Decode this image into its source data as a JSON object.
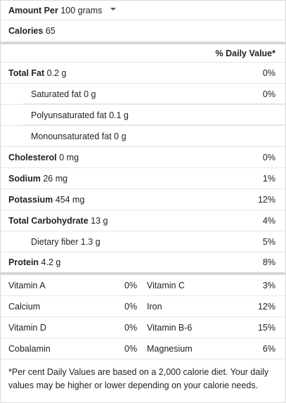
{
  "serving": {
    "label": "Amount Per",
    "value": "100 grams"
  },
  "calories": {
    "label": "Calories",
    "value": "65"
  },
  "dv_header": "% Daily Value*",
  "nutrients": [
    {
      "name": "Total Fat",
      "amount": "0.2 g",
      "dv": "0%"
    },
    {
      "name": "Saturated fat",
      "amount": "0 g",
      "dv": "0%"
    },
    {
      "name": "Polyunsaturated fat",
      "amount": "0.1 g",
      "dv": ""
    },
    {
      "name": "Monounsaturated fat",
      "amount": "0 g",
      "dv": ""
    },
    {
      "name": "Cholesterol",
      "amount": "0 mg",
      "dv": "0%"
    },
    {
      "name": "Sodium",
      "amount": "26 mg",
      "dv": "1%"
    },
    {
      "name": "Potassium",
      "amount": "454 mg",
      "dv": "12%"
    },
    {
      "name": "Total Carbohydrate",
      "amount": "13 g",
      "dv": "4%"
    },
    {
      "name": "Dietary fiber",
      "amount": "1.3 g",
      "dv": "5%"
    },
    {
      "name": "Protein",
      "amount": "4.2 g",
      "dv": "8%"
    }
  ],
  "vitamins": [
    {
      "left_name": "Vitamin A",
      "left_dv": "0%",
      "right_name": "Vitamin C",
      "right_dv": "3%"
    },
    {
      "left_name": "Calcium",
      "left_dv": "0%",
      "right_name": "Iron",
      "right_dv": "12%"
    },
    {
      "left_name": "Vitamin D",
      "left_dv": "0%",
      "right_name": "Vitamin B-6",
      "right_dv": "15%"
    },
    {
      "left_name": "Cobalamin",
      "left_dv": "0%",
      "right_name": "Magnesium",
      "right_dv": "6%"
    }
  ],
  "footnote": "*Per cent Daily Values are based on a 2,000 calorie diet. Your daily values may be higher or lower depending on your calorie needs."
}
